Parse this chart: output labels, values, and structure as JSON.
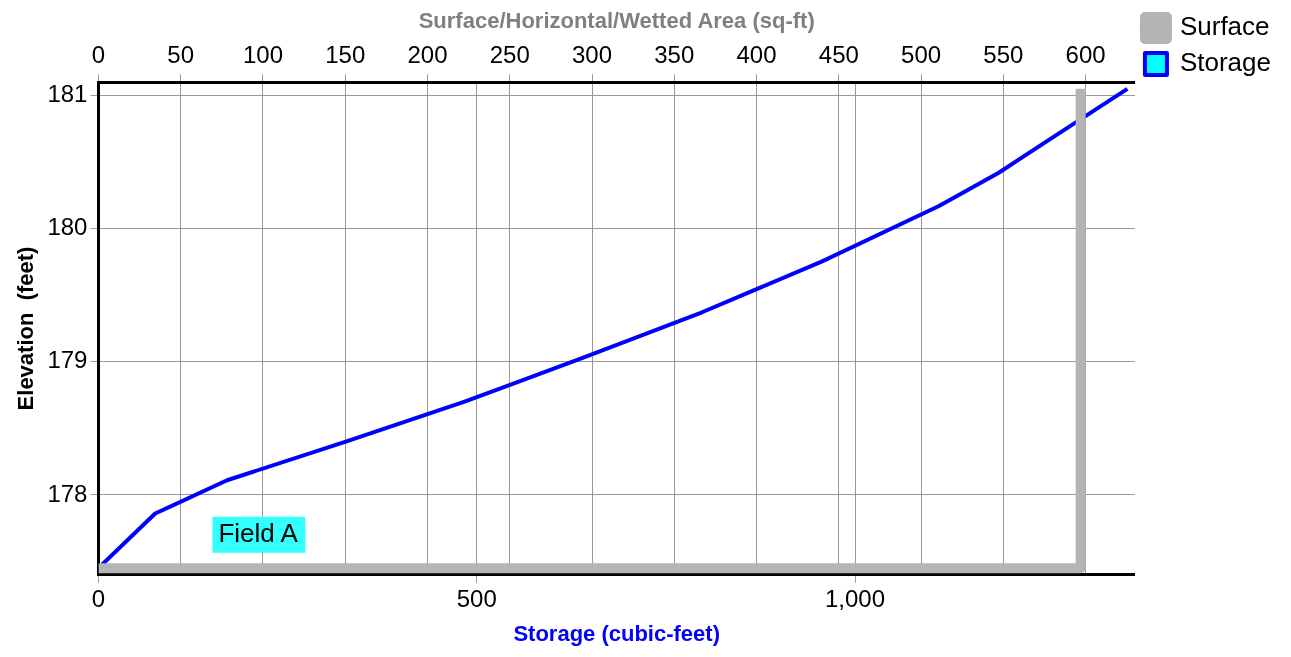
{
  "chart_data": {
    "type": "line",
    "xlabel": "Storage (cubic-feet)",
    "x2label": "Surface/Horizontal/Wetted Area (sq-ft)",
    "ylabel": "Elevation  (feet)",
    "xlim": [
      0,
      1370
    ],
    "xticks": [
      0,
      500,
      {
        "value": 1000,
        "label": "1,000"
      }
    ],
    "x2lim": [
      0,
      630
    ],
    "x2ticks": [
      0,
      50,
      100,
      150,
      200,
      250,
      300,
      350,
      400,
      450,
      500,
      550,
      600
    ],
    "ylim": [
      177.4,
      181.1
    ],
    "yticks": [
      178,
      179,
      180,
      181
    ],
    "grid": true,
    "legend": "top right",
    "marker": "none",
    "line_style": "solid",
    "annotations": [
      "Field A"
    ],
    "series": [
      {
        "name": "Surface",
        "type": "line",
        "axis": "x2",
        "color": "#b4b4b4",
        "x": [
          0,
          597,
          597
        ],
        "values": [
          177.45,
          177.45,
          181.05
        ]
      },
      {
        "name": "Storage",
        "color": "#0000ff",
        "x": [
          0,
          75,
          170,
          327,
          484,
          640,
          797,
          955,
          1111,
          1190,
          1268,
          1360
        ],
        "values": [
          177.45,
          177.86,
          178.11,
          178.4,
          178.7,
          179.03,
          179.37,
          179.75,
          180.17,
          180.42,
          180.71,
          181.05
        ]
      }
    ]
  }
}
